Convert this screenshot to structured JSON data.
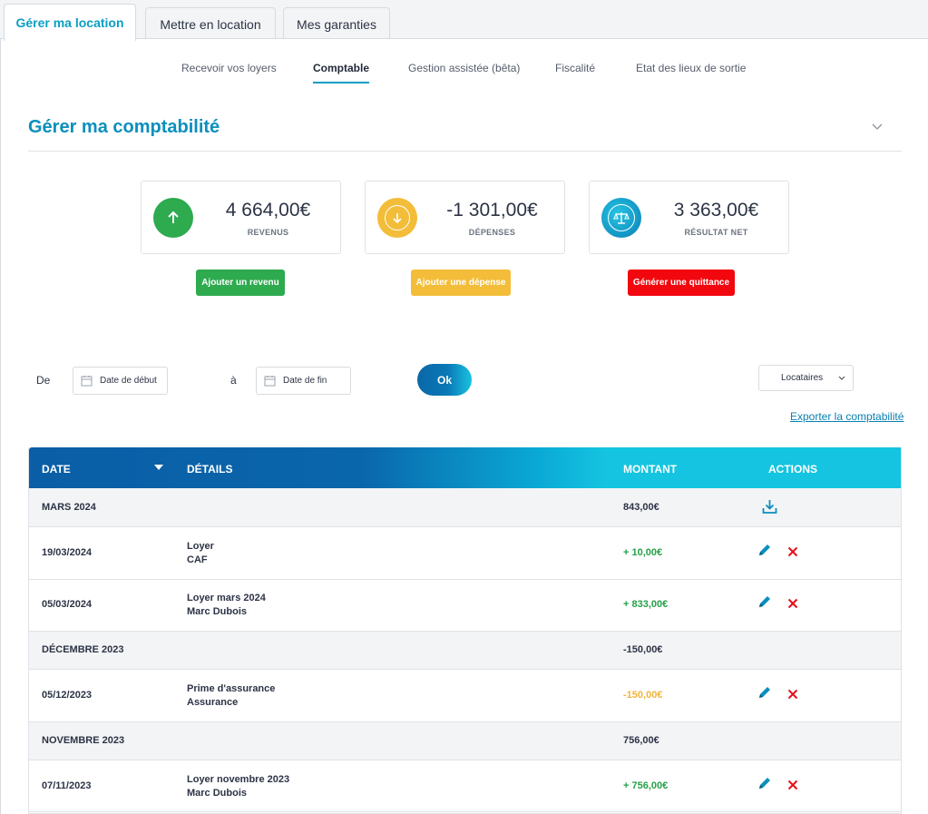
{
  "top_tabs": [
    {
      "label": "Gérer ma location",
      "active": true
    },
    {
      "label": "Mettre en location",
      "active": false
    },
    {
      "label": "Mes garanties",
      "active": false
    }
  ],
  "subnav": [
    {
      "label": "Recevoir vos loyers",
      "active": false
    },
    {
      "label": "Comptable",
      "active": true
    },
    {
      "label": "Gestion assistée (bêta)",
      "active": false
    },
    {
      "label": "Fiscalité",
      "active": false
    },
    {
      "label": "Etat des lieux de sortie",
      "active": false
    }
  ],
  "section": {
    "title": "Gérer ma comptabilité"
  },
  "summary": [
    {
      "amount": "4 664,00€",
      "label": "REVENUS",
      "color": "#2eaa4f",
      "icon": "arrow-up-icon"
    },
    {
      "amount": "-1 301,00€",
      "label": "DÉPENSES",
      "color": "#f3bd3a",
      "icon": "arrow-down-icon"
    },
    {
      "amount": "3 363,00€",
      "label": "RÉSULTAT NET",
      "color": "#0a9ec4",
      "icon": "balance-scale-icon"
    }
  ],
  "actions": {
    "add_income": "Ajouter un revenu",
    "add_expense": "Ajouter une dépense",
    "generate_receipt": "Générer une quittance"
  },
  "filters": {
    "from_label": "De",
    "start_placeholder": "Date de début",
    "to_label": "à",
    "end_placeholder": "Date de fin",
    "ok": "Ok",
    "tenants_select": "Locataires",
    "export_link": "Exporter la comptabilité"
  },
  "table": {
    "headers": {
      "date": "DATE",
      "details": "DÉTAILS",
      "amount": "MONTANT",
      "actions": "ACTIONS"
    },
    "rows": [
      {
        "type": "group",
        "label": "MARS 2024",
        "amount": "843,00€",
        "download": true
      },
      {
        "type": "entry",
        "date": "19/03/2024",
        "line1": "Loyer",
        "line2": "CAF",
        "amount": "+ 10,00€",
        "kind": "pos"
      },
      {
        "type": "entry",
        "date": "05/03/2024",
        "line1": "Loyer mars 2024",
        "line2": "Marc Dubois",
        "amount": "+ 833,00€",
        "kind": "pos"
      },
      {
        "type": "group",
        "label": "DÉCEMBRE 2023",
        "amount": "-150,00€",
        "download": false
      },
      {
        "type": "entry",
        "date": "05/12/2023",
        "line1": "Prime d'assurance",
        "line2": "Assurance",
        "amount": "-150,00€",
        "kind": "neg"
      },
      {
        "type": "group",
        "label": "NOVEMBRE 2023",
        "amount": "756,00€",
        "download": false
      },
      {
        "type": "entry",
        "date": "07/11/2023",
        "line1": "Loyer novembre 2023",
        "line2": "Marc Dubois",
        "amount": "+ 756,00€",
        "kind": "pos"
      }
    ]
  }
}
